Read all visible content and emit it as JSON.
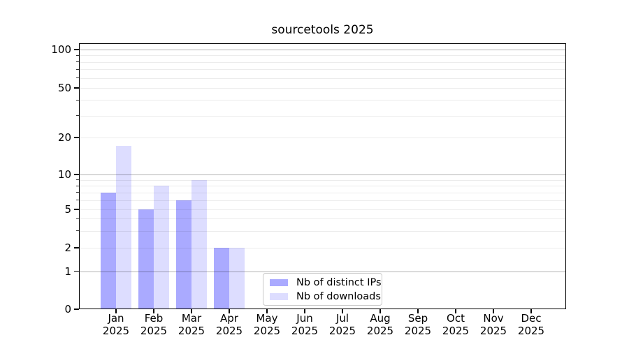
{
  "chart_data": {
    "type": "bar",
    "title": "sourcetools 2025",
    "yscale": "symlog",
    "grid": true,
    "categories": [
      "Jan 2025",
      "Feb 2025",
      "Mar 2025",
      "Apr 2025",
      "May 2025",
      "Jun 2025",
      "Jul 2025",
      "Aug 2025",
      "Sep 2025",
      "Oct 2025",
      "Nov 2025",
      "Dec 2025"
    ],
    "series": [
      {
        "name": "Nb of distinct IPs",
        "color": "#aaaaff",
        "values": [
          7,
          5,
          6,
          2,
          0,
          0,
          0,
          0,
          0,
          0,
          0,
          0
        ]
      },
      {
        "name": "Nb of downloads",
        "color": "#ddddff",
        "values": [
          17,
          8,
          9,
          2,
          0,
          0,
          0,
          0,
          0,
          0,
          0,
          0
        ]
      }
    ],
    "xlabel": "",
    "ylabel": "",
    "ylim": [
      0,
      100
    ],
    "y_ticks": [
      0,
      1,
      2,
      5,
      10,
      20,
      50,
      100
    ],
    "y_tick_labels": [
      "0",
      "1",
      "2",
      "5",
      "10",
      "20",
      "50",
      "100"
    ],
    "y_major_gridlines": [
      1,
      10,
      100
    ],
    "y_minor_gridlines": [
      2,
      3,
      4,
      5,
      6,
      7,
      8,
      9,
      20,
      30,
      40,
      50,
      60,
      70,
      80,
      90
    ],
    "legend_position": "lower center"
  },
  "colors": {
    "bar_dark": "#aaaaff",
    "bar_light": "#ddddff",
    "grid_major": "#b3b3b3",
    "grid_minor": "#ececec",
    "spine": "#000000",
    "background": "#ffffff"
  }
}
